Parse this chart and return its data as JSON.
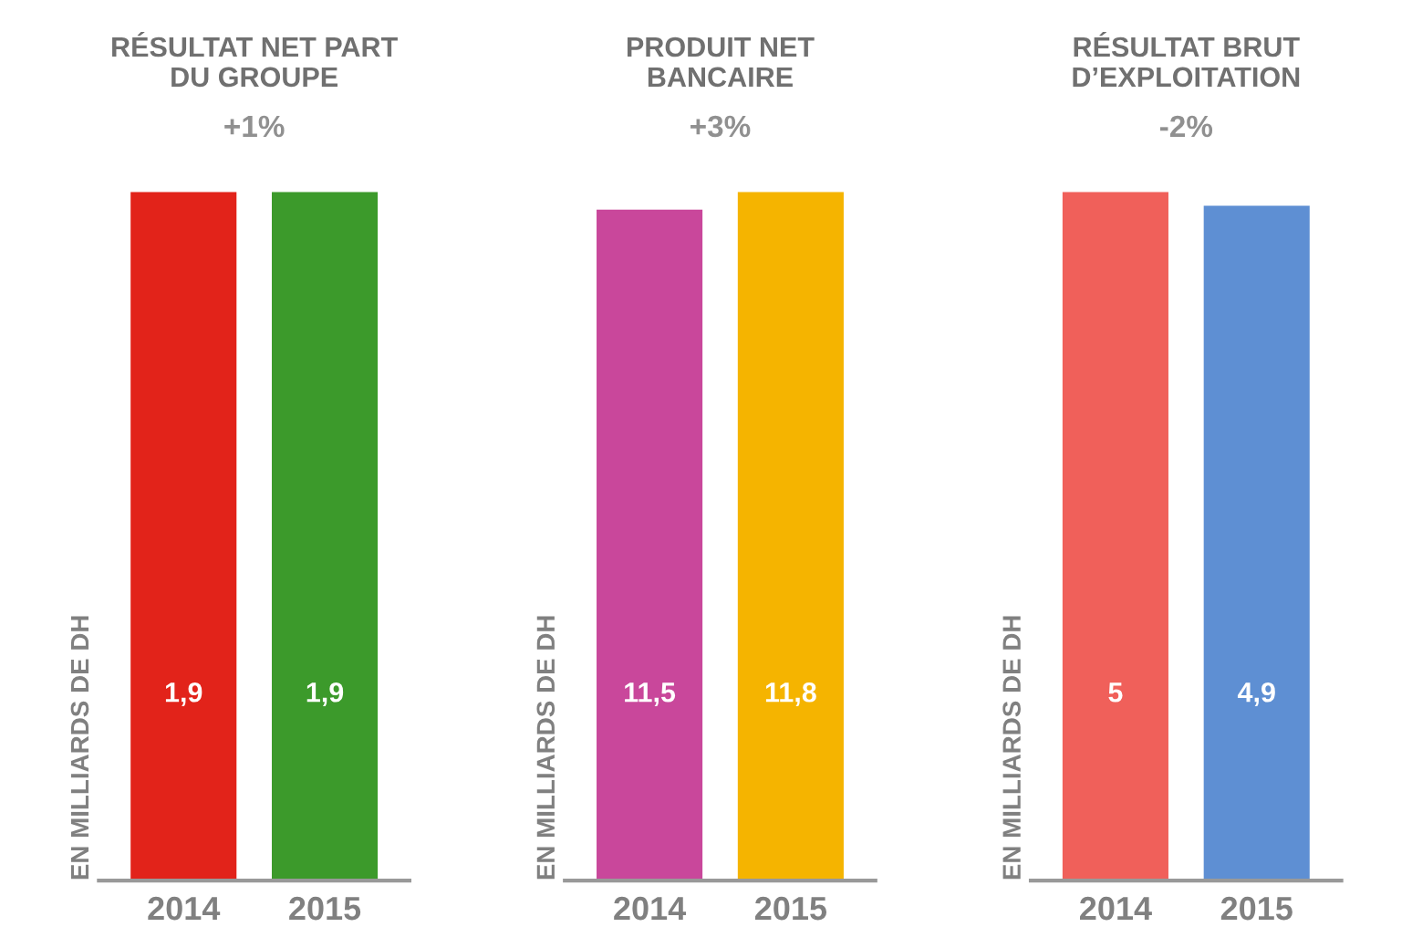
{
  "chart_data": [
    {
      "type": "bar",
      "title": "RÉSULTAT NET PART\nDU GROUPE",
      "subtitle": "+1%",
      "ylabel": "EN MILLIARDS DE DH",
      "categories": [
        "2014",
        "2015"
      ],
      "values": [
        1.9,
        1.9
      ],
      "colors": [
        "#e2231a",
        "#3c9a2b"
      ],
      "value_labels": [
        "1,9",
        "1,9"
      ],
      "grid": false,
      "legend": false
    },
    {
      "type": "bar",
      "title": "PRODUIT NET\nBANCAIRE",
      "subtitle": "+3%",
      "ylabel": "EN MILLIARDS DE DH",
      "categories": [
        "2014",
        "2015"
      ],
      "values": [
        11.5,
        11.8
      ],
      "colors": [
        "#c9479b",
        "#f5b400"
      ],
      "value_labels": [
        "11,5",
        "11,8"
      ],
      "grid": false,
      "legend": false
    },
    {
      "type": "bar",
      "title": "RÉSULTAT BRUT\nD’EXPLOITATION",
      "subtitle": "-2%",
      "ylabel": "EN MILLIARDS DE DH",
      "categories": [
        "2014",
        "2015"
      ],
      "values": [
        5,
        4.9
      ],
      "colors": [
        "#f0605a",
        "#5e8fd3"
      ],
      "value_labels": [
        "5",
        "4,9"
      ],
      "grid": false,
      "legend": false
    }
  ]
}
